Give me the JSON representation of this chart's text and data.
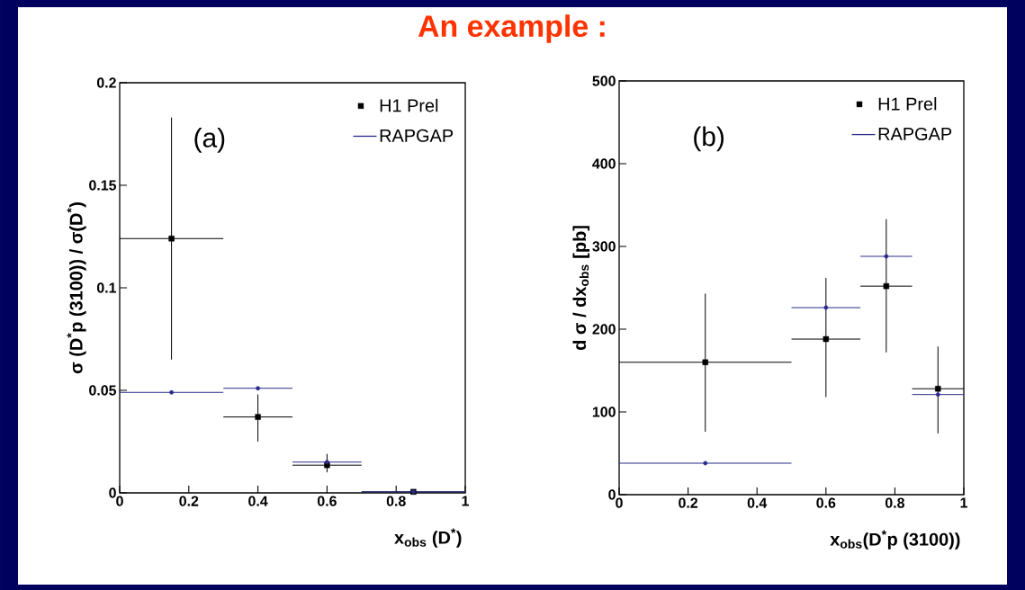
{
  "chart_data": [
    {
      "type": "scatter",
      "title": "An example :",
      "xlabel": "x$_{obs}$ (D$^{*}$)",
      "ylabel": "σ (D$^{*}$p (3100)) / σ(D$^{*}$)",
      "annotations": [
        "(a)"
      ],
      "xlim": [
        0,
        1
      ],
      "ylim": [
        0,
        0.2
      ],
      "xticks": [
        0,
        0.2,
        0.4,
        0.6,
        0.8,
        1
      ],
      "yticks": [
        0,
        0.05,
        0.1,
        0.15,
        0.2
      ],
      "legend": "top right",
      "series": [
        {
          "name": "H1 Prel",
          "color": "#000000",
          "marker": "square",
          "x": [
            0.15,
            0.4,
            0.6,
            0.85
          ],
          "values": [
            0.124,
            0.037,
            0.0135,
            0.0005
          ],
          "errors": [
            [
              0.065,
              0.183
            ],
            [
              0.025,
              0.048
            ],
            [
              0.01,
              0.019
            ],
            null
          ],
          "xerrors": [
            [
              0,
              0.3
            ],
            [
              0.3,
              0.5
            ],
            [
              0.5,
              0.7
            ],
            [
              0.7,
              1
            ]
          ]
        },
        {
          "name": "RAPGAP",
          "color": "#2b2b8c",
          "marker": "circle",
          "x": [
            0.15,
            0.4,
            0.6,
            0.85
          ],
          "values": [
            0.049,
            0.051,
            0.015,
            0.0005
          ],
          "xerrors": [
            [
              0,
              0.3
            ],
            [
              0.3,
              0.5
            ],
            [
              0.5,
              0.7
            ],
            [
              0.7,
              1
            ]
          ]
        }
      ]
    },
    {
      "type": "scatter",
      "xlabel": "x$_{obs}$(D$^{*}$p (3100))",
      "ylabel": "d σ / dx$_{obs}$ [pb]",
      "annotations": [
        "(b)"
      ],
      "xlim": [
        0,
        1
      ],
      "ylim": [
        0,
        500
      ],
      "xticks": [
        0,
        0.2,
        0.4,
        0.6,
        0.8,
        1
      ],
      "yticks": [
        0,
        100,
        200,
        300,
        400,
        500
      ],
      "legend": "top right",
      "series": [
        {
          "name": "H1 Prel",
          "color": "#000000",
          "marker": "square",
          "x": [
            0.25,
            0.6,
            0.775,
            0.925
          ],
          "values": [
            160,
            188,
            252,
            128
          ],
          "errors": [
            [
              76,
              243
            ],
            [
              118,
              262
            ],
            [
              172,
              333
            ],
            [
              74,
              179
            ]
          ],
          "xerrors": [
            [
              0,
              0.5
            ],
            [
              0.5,
              0.7
            ],
            [
              0.7,
              0.85
            ],
            [
              0.85,
              1
            ]
          ]
        },
        {
          "name": "RAPGAP",
          "color": "#2b2b8c",
          "marker": "circle",
          "x": [
            0.25,
            0.6,
            0.775,
            0.925
          ],
          "values": [
            38,
            226,
            288,
            121
          ],
          "xerrors": [
            [
              0,
              0.5
            ],
            [
              0.5,
              0.7
            ],
            [
              0.7,
              0.85
            ],
            [
              0.85,
              1
            ]
          ]
        }
      ]
    }
  ]
}
